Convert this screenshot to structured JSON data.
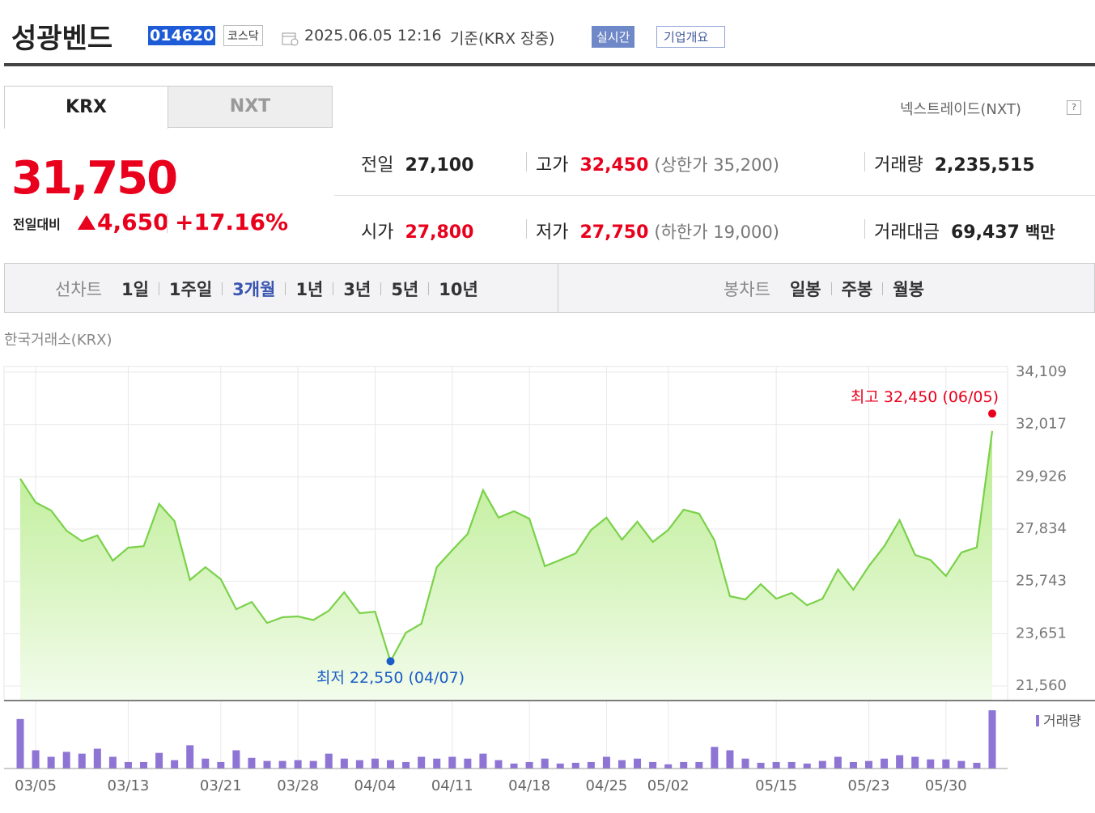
{
  "header": {
    "name": "성광벤드",
    "code": "014620",
    "market": "코스닥",
    "datetime": "2025.06.05 12:16",
    "basis": "기준(KRX 장중)",
    "realtime": "실시간",
    "company": "기업개요"
  },
  "tabs": [
    "KRX",
    "NXT"
  ],
  "nxt_link": "넥스트레이드(NXT)",
  "price": {
    "current": "31,750",
    "change_label": "전일대비",
    "change": "4,650",
    "change_pct": "+17.16%"
  },
  "info": [
    [
      {
        "label": "전일",
        "value": "27,100"
      },
      {
        "label": "고가",
        "value": "32,450",
        "note": "(상한가 35,200)"
      },
      {
        "label": "거래량",
        "value": "2,235,515"
      }
    ],
    [
      {
        "label": "시가",
        "value": "27,800"
      },
      {
        "label": "저가",
        "value": "27,750",
        "note": "(하한가 19,000)"
      },
      {
        "label": "거래대금",
        "value": "69,437",
        "unit": "백만"
      }
    ]
  ],
  "periods": {
    "line_label": "선차트",
    "line": [
      "1일",
      "1주일",
      "3개월",
      "1년",
      "3년",
      "5년",
      "10년"
    ],
    "selected_index": 2,
    "candle_label": "봉차트",
    "candle": [
      "일봉",
      "주봉",
      "월봉"
    ]
  },
  "chart_data": {
    "type": "line",
    "source": "한국거래소(KRX)",
    "x": [
      "03/04",
      "03/05",
      "03/06",
      "03/07",
      "03/10",
      "03/11",
      "03/12",
      "03/13",
      "03/14",
      "03/17",
      "03/18",
      "03/19",
      "03/20",
      "03/21",
      "03/24",
      "03/25",
      "03/26",
      "03/27",
      "03/28",
      "03/31",
      "04/01",
      "04/02",
      "04/03",
      "04/04",
      "04/07",
      "04/08",
      "04/09",
      "04/10",
      "04/11",
      "04/14",
      "04/15",
      "04/16",
      "04/17",
      "04/18",
      "04/21",
      "04/22",
      "04/23",
      "04/24",
      "04/25",
      "04/28",
      "04/29",
      "04/30",
      "05/02",
      "05/07",
      "05/08",
      "05/09",
      "05/12",
      "05/13",
      "05/14",
      "05/15",
      "05/16",
      "05/19",
      "05/20",
      "05/21",
      "05/22",
      "05/23",
      "05/26",
      "05/27",
      "05/28",
      "05/29",
      "05/30",
      "06/02",
      "06/04",
      "06/05"
    ],
    "xticks": [
      "03/05",
      "03/13",
      "03/21",
      "03/28",
      "04/04",
      "04/11",
      "04/18",
      "04/25",
      "05/02",
      "05/15",
      "05/23",
      "05/30"
    ],
    "series": [
      {
        "color": "#7ad14a",
        "values": [
          29850,
          28900,
          28580,
          27770,
          27350,
          27580,
          26570,
          27090,
          27150,
          28840,
          28150,
          25800,
          26310,
          25830,
          24630,
          24920,
          24080,
          24310,
          24340,
          24200,
          24570,
          25310,
          24470,
          24530,
          22550,
          23690,
          24050,
          26310,
          26990,
          27640,
          29390,
          28290,
          28550,
          28250,
          26350,
          26600,
          26860,
          27800,
          28290,
          27410,
          28130,
          27320,
          27800,
          28610,
          28450,
          27380,
          25150,
          25020,
          25630,
          25050,
          25280,
          24790,
          25050,
          26220,
          25410,
          26350,
          27150,
          28190,
          26800,
          26600,
          25960,
          26900,
          27100,
          31750
        ]
      },
      {
        "name": "거래량",
        "type": "bar",
        "color": "#8e74d4",
        "values": [
          1900000,
          700000,
          450000,
          640000,
          570000,
          760000,
          450000,
          250000,
          250000,
          600000,
          320000,
          890000,
          380000,
          250000,
          700000,
          410000,
          290000,
          290000,
          320000,
          290000,
          570000,
          380000,
          320000,
          380000,
          320000,
          250000,
          450000,
          380000,
          450000,
          380000,
          570000,
          320000,
          190000,
          250000,
          380000,
          190000,
          220000,
          250000,
          450000,
          320000,
          380000,
          250000,
          160000,
          250000,
          250000,
          830000,
          700000,
          380000,
          220000,
          250000,
          250000,
          190000,
          290000,
          450000,
          250000,
          290000,
          380000,
          510000,
          450000,
          350000,
          350000,
          290000,
          220000,
          2235515
        ]
      }
    ],
    "ylim": [
      20978,
      34109
    ],
    "yticks": [
      {
        "value": 34109,
        "label": "34,109"
      },
      {
        "value": 32017,
        "label": "32,017"
      },
      {
        "value": 29926,
        "label": "29,926"
      },
      {
        "value": 27834,
        "label": "27,834"
      },
      {
        "value": 25743,
        "label": "25,743"
      },
      {
        "value": 23651,
        "label": "23,651"
      },
      {
        "value": 21560,
        "label": "21,560"
      }
    ],
    "grid": true,
    "annotations": [
      {
        "text": "최고 32,450 (06/05)",
        "value": 32450,
        "x": "06/05",
        "color": "#e8001c"
      },
      {
        "text": "최저 22,550 (04/07)",
        "value": 22550,
        "x": "04/07",
        "color": "#1a5cc8"
      }
    ]
  }
}
